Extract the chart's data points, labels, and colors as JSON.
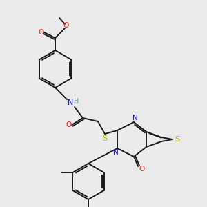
{
  "bg_color": "#ebebeb",
  "bond_color": "#1a1a1a",
  "N_color": "#1010ff",
  "O_color": "#ff1010",
  "S_color": "#b8b800",
  "NH_color": "#5599aa"
}
